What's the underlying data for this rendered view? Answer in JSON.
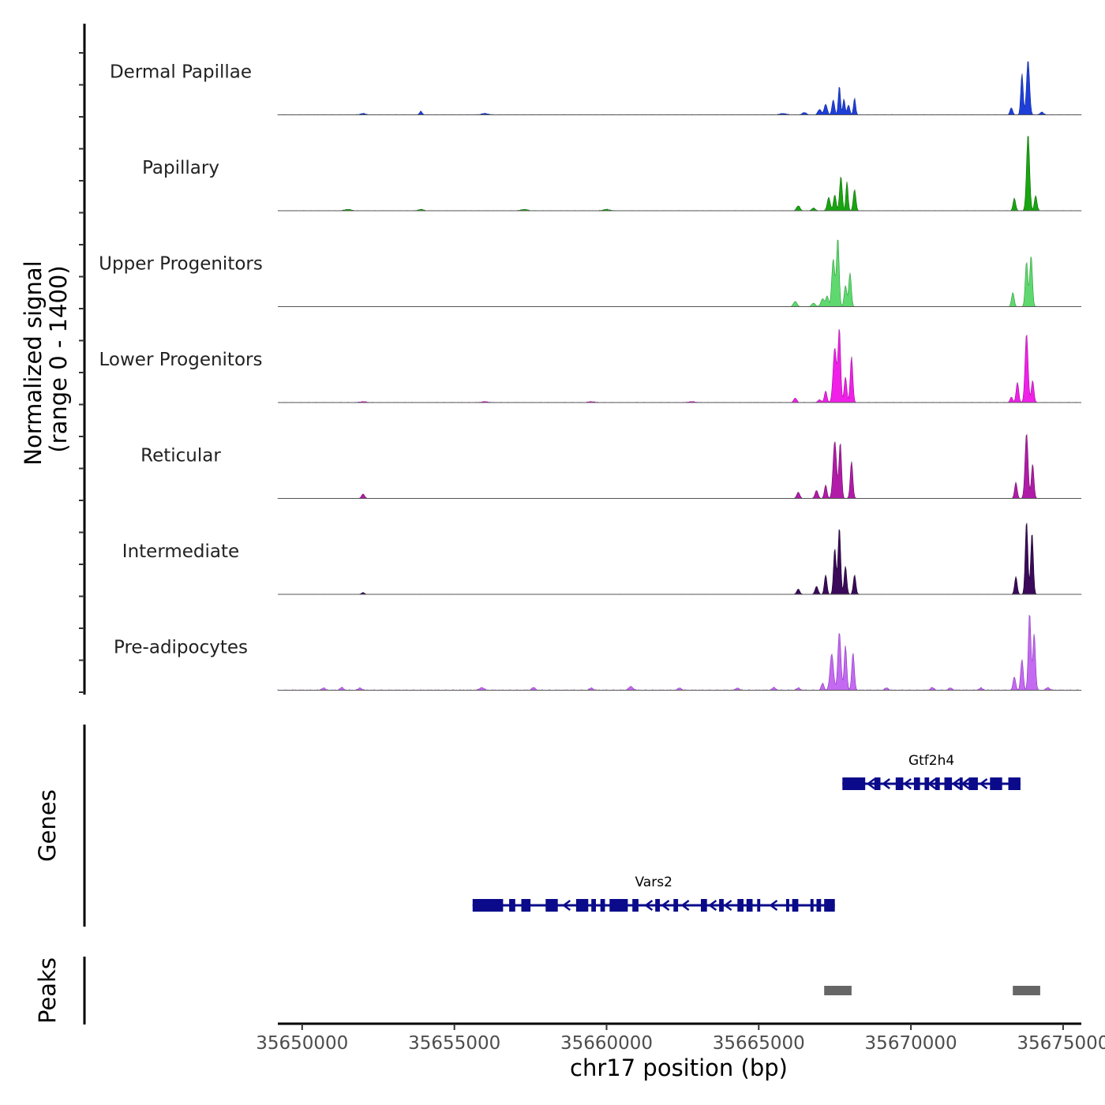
{
  "chart_data": {
    "type": "area",
    "title": "",
    "chromosome": "chr17",
    "xlabel": "chr17 position (bp)",
    "ylabel_line1": "Normalized signal",
    "ylabel_line2": "(range 0 - 1400)",
    "y_range": [
      0,
      1400
    ],
    "xlim": [
      35649200,
      35675600
    ],
    "x_ticks": [
      35650000,
      35655000,
      35660000,
      35665000,
      35670000,
      35675000
    ],
    "x_tick_labels": [
      "35650000",
      "35655000",
      "35660000",
      "35665000",
      "35670000",
      "35675000"
    ],
    "tracks": [
      {
        "name": "Dermal Papillae",
        "color": "#1f3fd9",
        "stroke": "#0f2a9a",
        "peaks": [
          [
            35652000,
            15,
            120
          ],
          [
            35653900,
            40,
            60
          ],
          [
            35656000,
            15,
            150
          ],
          [
            35665800,
            15,
            150
          ],
          [
            35666500,
            25,
            100
          ],
          [
            35667000,
            60,
            80
          ],
          [
            35667200,
            120,
            70
          ],
          [
            35667450,
            170,
            60
          ],
          [
            35667650,
            330,
            50
          ],
          [
            35667800,
            180,
            50
          ],
          [
            35667950,
            110,
            60
          ],
          [
            35668150,
            190,
            50
          ],
          [
            35673300,
            80,
            60
          ],
          [
            35673650,
            470,
            55
          ],
          [
            35673850,
            620,
            70
          ],
          [
            35674300,
            30,
            80
          ]
        ],
        "noise": 15
      },
      {
        "name": "Papillary",
        "color": "#17a60f",
        "stroke": "#0e6a09",
        "peaks": [
          [
            35651500,
            15,
            150
          ],
          [
            35653900,
            15,
            120
          ],
          [
            35657300,
            15,
            150
          ],
          [
            35660000,
            15,
            150
          ],
          [
            35666300,
            55,
            80
          ],
          [
            35666800,
            30,
            80
          ],
          [
            35667300,
            150,
            70
          ],
          [
            35667500,
            180,
            60
          ],
          [
            35667700,
            390,
            60
          ],
          [
            35667900,
            330,
            50
          ],
          [
            35668150,
            240,
            60
          ],
          [
            35673400,
            140,
            60
          ],
          [
            35673850,
            870,
            70
          ],
          [
            35674100,
            170,
            60
          ]
        ],
        "noise": 12
      },
      {
        "name": "Upper Progenitors",
        "color": "#5fd96f",
        "stroke": "#2c9a3b",
        "peaks": [
          [
            35666200,
            60,
            80
          ],
          [
            35666800,
            40,
            80
          ],
          [
            35667100,
            90,
            80
          ],
          [
            35667250,
            120,
            60
          ],
          [
            35667450,
            540,
            70
          ],
          [
            35667600,
            780,
            60
          ],
          [
            35667850,
            240,
            60
          ],
          [
            35668000,
            380,
            60
          ],
          [
            35673350,
            160,
            60
          ],
          [
            35673800,
            510,
            60
          ],
          [
            35673950,
            580,
            60
          ]
        ],
        "noise": 8
      },
      {
        "name": "Lower Progenitors",
        "color": "#f020e8",
        "stroke": "#a3119d",
        "peaks": [
          [
            35652000,
            10,
            150
          ],
          [
            35656000,
            10,
            150
          ],
          [
            35659500,
            10,
            150
          ],
          [
            35662800,
            10,
            150
          ],
          [
            35666200,
            50,
            70
          ],
          [
            35667000,
            30,
            80
          ],
          [
            35667200,
            130,
            60
          ],
          [
            35667500,
            620,
            80
          ],
          [
            35667650,
            830,
            60
          ],
          [
            35667850,
            290,
            60
          ],
          [
            35668050,
            520,
            60
          ],
          [
            35673300,
            60,
            60
          ],
          [
            35673500,
            230,
            60
          ],
          [
            35673800,
            780,
            70
          ],
          [
            35674000,
            250,
            60
          ]
        ],
        "noise": 14
      },
      {
        "name": "Reticular",
        "color": "#b01ca8",
        "stroke": "#6f0e69",
        "peaks": [
          [
            35652000,
            50,
            70
          ],
          [
            35666300,
            70,
            70
          ],
          [
            35666900,
            90,
            70
          ],
          [
            35667200,
            150,
            60
          ],
          [
            35667500,
            650,
            80
          ],
          [
            35667680,
            630,
            60
          ],
          [
            35668050,
            420,
            60
          ],
          [
            35673450,
            180,
            60
          ],
          [
            35673800,
            740,
            70
          ],
          [
            35674000,
            390,
            60
          ]
        ],
        "noise": 8
      },
      {
        "name": "Intermediate",
        "color": "#3b0a5a",
        "stroke": "#1f0430",
        "peaks": [
          [
            35652000,
            20,
            70
          ],
          [
            35666300,
            60,
            70
          ],
          [
            35666900,
            90,
            70
          ],
          [
            35667200,
            220,
            60
          ],
          [
            35667500,
            520,
            60
          ],
          [
            35667650,
            760,
            60
          ],
          [
            35667850,
            320,
            60
          ],
          [
            35668150,
            220,
            60
          ],
          [
            35673450,
            200,
            60
          ],
          [
            35673800,
            830,
            60
          ],
          [
            35673980,
            700,
            60
          ]
        ],
        "noise": 8
      },
      {
        "name": "Pre-adipocytes",
        "color": "#c46af2",
        "stroke": "#8a34bb",
        "peaks": [
          [
            35650700,
            25,
            80
          ],
          [
            35651300,
            30,
            80
          ],
          [
            35651900,
            25,
            80
          ],
          [
            35655900,
            30,
            100
          ],
          [
            35657600,
            30,
            80
          ],
          [
            35659500,
            25,
            80
          ],
          [
            35660800,
            40,
            100
          ],
          [
            35662400,
            25,
            80
          ],
          [
            35664300,
            25,
            80
          ],
          [
            35665500,
            30,
            80
          ],
          [
            35666300,
            25,
            80
          ],
          [
            35667100,
            80,
            60
          ],
          [
            35667400,
            410,
            80
          ],
          [
            35667650,
            660,
            70
          ],
          [
            35667850,
            500,
            60
          ],
          [
            35668100,
            420,
            60
          ],
          [
            35669200,
            25,
            80
          ],
          [
            35670700,
            30,
            80
          ],
          [
            35671300,
            25,
            80
          ],
          [
            35672300,
            25,
            80
          ],
          [
            35673400,
            150,
            60
          ],
          [
            35673650,
            350,
            60
          ],
          [
            35673900,
            880,
            60
          ],
          [
            35674050,
            640,
            60
          ],
          [
            35674500,
            30,
            80
          ]
        ],
        "noise": 22
      }
    ],
    "gene_track_label": "Genes",
    "peaks_track_label": "Peaks",
    "genes": [
      {
        "name": "Gtf2h4",
        "start": 35667750,
        "end": 35673600,
        "strand": "-",
        "row": 0,
        "exons": [
          [
            35667750,
            35668500
          ],
          [
            35668800,
            35669000
          ],
          [
            35669500,
            35669750
          ],
          [
            35670100,
            35670300
          ],
          [
            35670450,
            35670600
          ],
          [
            35670800,
            35670950
          ],
          [
            35671100,
            35671350
          ],
          [
            35671600,
            35671700
          ],
          [
            35671900,
            35672200
          ],
          [
            35672600,
            35673000
          ],
          [
            35673200,
            35673600
          ]
        ],
        "arrows": [
          35668700,
          35669200,
          35669900,
          35670700,
          35671500,
          35671800,
          35672400
        ]
      },
      {
        "name": "Vars2",
        "start": 35655600,
        "end": 35667500,
        "strand": "-",
        "row": 1,
        "exons": [
          [
            35655600,
            35656600
          ],
          [
            35656800,
            35657000
          ],
          [
            35657200,
            35657500
          ],
          [
            35658000,
            35658400
          ],
          [
            35659000,
            35659400
          ],
          [
            35659500,
            35659650
          ],
          [
            35659800,
            35659950
          ],
          [
            35660100,
            35660700
          ],
          [
            35660850,
            35661050
          ],
          [
            35661600,
            35661750
          ],
          [
            35662200,
            35662350
          ],
          [
            35663100,
            35663300
          ],
          [
            35663700,
            35663850
          ],
          [
            35664300,
            35664500
          ],
          [
            35664600,
            35664800
          ],
          [
            35664950,
            35665050
          ],
          [
            35665900,
            35666000
          ],
          [
            35666100,
            35666300
          ],
          [
            35666700,
            35666800
          ],
          [
            35666900,
            35667050
          ],
          [
            35667150,
            35667500
          ]
        ],
        "arrows": [
          35658700,
          35661400,
          35661950,
          35662600,
          35663500,
          35664000,
          35665500
        ]
      }
    ],
    "peak_regions": [
      [
        35667150,
        35668050
      ],
      [
        35673350,
        35674250
      ]
    ]
  }
}
